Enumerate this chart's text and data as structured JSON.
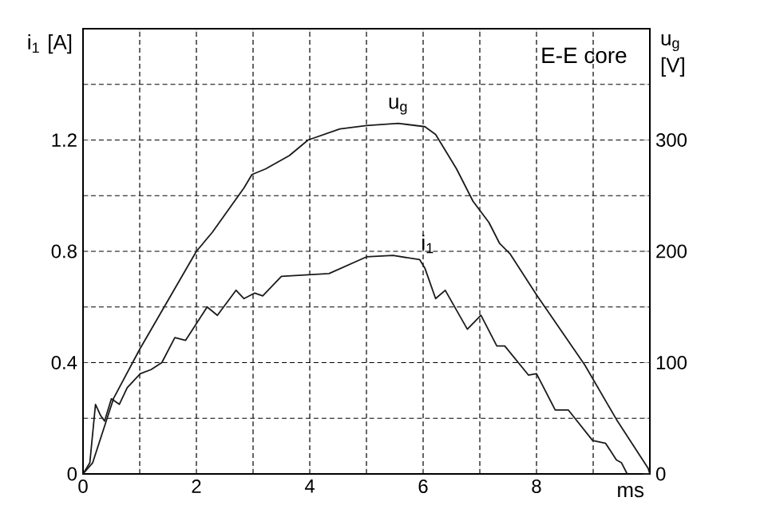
{
  "chart_data": {
    "type": "line",
    "ylabel": "i$_{1}$ [A]",
    "y2label": "u$_{g}$ [V]",
    "xlabel": "ms",
    "annotations": [
      "E-E core"
    ],
    "xlim": [
      0,
      10
    ],
    "xticks": [
      0,
      {
        "value": 1,
        "label": null
      },
      2,
      {
        "value": 3,
        "label": null
      },
      4,
      {
        "value": 5,
        "label": null
      },
      6,
      {
        "value": 7,
        "label": null
      },
      8,
      {
        "value": 9,
        "label": null
      }
    ],
    "ylim": [
      0,
      1.6
    ],
    "yticks": [
      0,
      {
        "value": 0.2,
        "label": null
      },
      0.4,
      {
        "value": 0.6,
        "label": null
      },
      0.8,
      {
        "value": 1.0,
        "label": null
      },
      1.2,
      {
        "value": 1.4,
        "label": null
      }
    ],
    "y2lim": [
      0,
      400
    ],
    "y2ticks": [
      0,
      100,
      200,
      300
    ],
    "grid": true,
    "series": [
      {
        "name": "u$_{g}$",
        "axis": "y2",
        "color": "#1a1a1a",
        "x": [
          0,
          0.17,
          0.54,
          1.0,
          2.0,
          2.28,
          2.84,
          2.98,
          3.22,
          3.64,
          3.97,
          4.53,
          5.0,
          5.56,
          6.03,
          6.22,
          6.59,
          6.88,
          7.16,
          7.35,
          7.53,
          8.0,
          8.85,
          9.41,
          9.97,
          10.0
        ],
        "values": [
          0,
          10,
          68,
          112,
          200,
          217,
          257,
          269,
          274,
          286,
          300,
          310,
          313,
          315,
          312,
          305,
          274,
          245,
          226,
          207,
          198,
          161,
          98,
          49,
          5,
          0
        ]
      },
      {
        "name": "i$_{1}$",
        "color": "#1a1a1a",
        "x": [
          0,
          0.12,
          0.22,
          0.31,
          0.38,
          0.5,
          0.64,
          0.78,
          1.01,
          1.2,
          1.39,
          1.62,
          1.81,
          2.19,
          2.37,
          2.7,
          2.84,
          3.03,
          3.17,
          3.5,
          4.34,
          5.0,
          5.47,
          5.94,
          6.03,
          6.22,
          6.39,
          6.78,
          7.02,
          7.3,
          7.44,
          7.86,
          8.0,
          8.33,
          8.56,
          8.99,
          9.22,
          9.41,
          9.5,
          9.6
        ],
        "values": [
          0,
          0.04,
          0.25,
          0.21,
          0.19,
          0.27,
          0.25,
          0.31,
          0.36,
          0.375,
          0.4,
          0.49,
          0.48,
          0.6,
          0.57,
          0.66,
          0.63,
          0.65,
          0.64,
          0.71,
          0.72,
          0.78,
          0.785,
          0.77,
          0.74,
          0.63,
          0.66,
          0.52,
          0.57,
          0.46,
          0.46,
          0.355,
          0.36,
          0.23,
          0.23,
          0.12,
          0.11,
          0.05,
          0.04,
          0
        ]
      }
    ]
  }
}
